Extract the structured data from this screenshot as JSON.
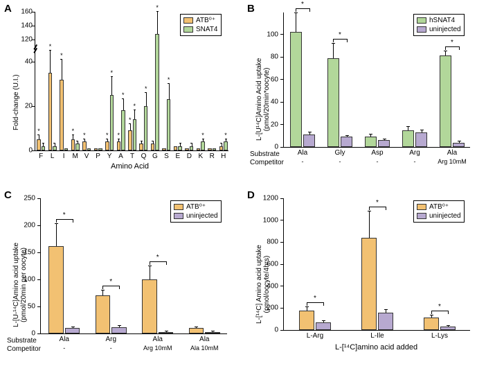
{
  "colors": {
    "atb": "#f2c172",
    "snat4": "#b2d79a",
    "uninj": "#b7a9d0",
    "border": "#333333",
    "axis": "#000000",
    "bg": "#ffffff"
  },
  "panelA": {
    "letter": "A",
    "ylabel": "Fold-change (U.I.)",
    "xlabel": "Amino Acid",
    "ymax": 160,
    "low_ymax": 45,
    "break_at": 45,
    "yticks_high": [
      120,
      140,
      160
    ],
    "yticks_low": [
      0,
      20,
      40
    ],
    "categories": [
      "F",
      "L",
      "I",
      "M",
      "V",
      "P",
      "Y",
      "A",
      "T",
      "Q",
      "G",
      "S",
      "E",
      "D",
      "K",
      "R",
      "H"
    ],
    "atb": {
      "vals": [
        5,
        35,
        32,
        5,
        4,
        1,
        4,
        4,
        9,
        3,
        3,
        1,
        2,
        1,
        1,
        1,
        2
      ],
      "err": [
        2,
        10,
        9,
        2,
        1,
        0,
        1,
        1,
        3,
        1,
        1,
        0,
        0,
        0,
        0,
        0,
        1
      ],
      "sig": [
        1,
        1,
        1,
        1,
        1,
        0,
        1,
        1,
        1,
        0,
        0,
        0,
        0,
        0,
        0,
        0,
        0
      ]
    },
    "snat4": {
      "vals": [
        2,
        2,
        1,
        3,
        1,
        1,
        25,
        18,
        14,
        20,
        128,
        23,
        2,
        2,
        4,
        1,
        4
      ],
      "err": [
        1,
        1,
        0,
        1,
        0,
        0,
        8,
        5,
        4,
        6,
        32,
        7,
        1,
        1,
        1,
        0,
        1
      ],
      "sig": [
        0,
        0,
        0,
        0,
        0,
        0,
        1,
        1,
        1,
        1,
        1,
        1,
        0,
        0,
        1,
        0,
        1
      ]
    },
    "legend": [
      {
        "label": "ATB⁰⁺",
        "color": "atb"
      },
      {
        "label": "SNAT4",
        "color": "snat4"
      }
    ]
  },
  "panelB": {
    "letter": "B",
    "ylabel": "L-[U¹⁴C]Amino Acid uptake\n(pmol/20min*oocyte)",
    "ymax": 120,
    "yticks": [
      0,
      20,
      40,
      60,
      80,
      100
    ],
    "groups": [
      "Ala",
      "Gly",
      "Asp",
      "Arg",
      "Ala"
    ],
    "competitors": [
      "-",
      "-",
      "-",
      "-",
      "Arg 10mM"
    ],
    "rowlabels": [
      "Substrate",
      "Competitor"
    ],
    "snat4": {
      "vals": [
        102,
        79,
        9,
        15,
        81
      ],
      "err": [
        17,
        13,
        2,
        3,
        4
      ]
    },
    "uninj": {
      "vals": [
        11,
        9,
        6,
        13,
        4
      ],
      "err": [
        2,
        1,
        1,
        2,
        1
      ]
    },
    "sig": [
      1,
      1,
      0,
      0,
      1
    ],
    "legend": [
      {
        "label": "hSNAT4",
        "color": "snat4"
      },
      {
        "label": "uninjected",
        "color": "uninj"
      }
    ]
  },
  "panelC": {
    "letter": "C",
    "ylabel": "L-[U-¹⁴C]Amino acid uptake\n(pmol/20min per oocyte)",
    "ymax": 250,
    "yticks": [
      0,
      50,
      100,
      150,
      200,
      250
    ],
    "groups": [
      "Ala",
      "Arg",
      "Ala",
      "Ala"
    ],
    "competitors": [
      "-",
      "-",
      "Arg 10mM",
      "Ala 10mM"
    ],
    "rowlabels": [
      "Substrate",
      "Competitor"
    ],
    "atb": {
      "vals": [
        162,
        70,
        100,
        10
      ],
      "err": [
        40,
        10,
        25,
        2
      ]
    },
    "uninj": {
      "vals": [
        10,
        12,
        3,
        3
      ],
      "err": [
        1,
        2,
        1,
        1
      ]
    },
    "sig": [
      1,
      1,
      1,
      0
    ],
    "legend": [
      {
        "label": "ATB⁰⁺",
        "color": "atb"
      },
      {
        "label": "uninjected",
        "color": "uninj"
      }
    ]
  },
  "panelD": {
    "letter": "D",
    "ylabel": "L-[¹⁴C] Amino acid uptake\n(pmol/oocyte/4hrs)",
    "xlabel": "L-[¹⁴C]amino acid added",
    "ymax": 1200,
    "yticks": [
      0,
      200,
      400,
      600,
      800,
      1000,
      1200
    ],
    "groups": [
      "L-Arg",
      "L-Ile",
      "L-Lys"
    ],
    "atb": {
      "vals": [
        180,
        840,
        115
      ],
      "err": [
        30,
        240,
        20
      ]
    },
    "uninj": {
      "vals": [
        70,
        160,
        30
      ],
      "err": [
        10,
        25,
        8
      ]
    },
    "sig": [
      1,
      1,
      1
    ],
    "legend": [
      {
        "label": "ATB⁰⁺",
        "color": "atb"
      },
      {
        "label": "uninjected",
        "color": "uninj"
      }
    ]
  }
}
